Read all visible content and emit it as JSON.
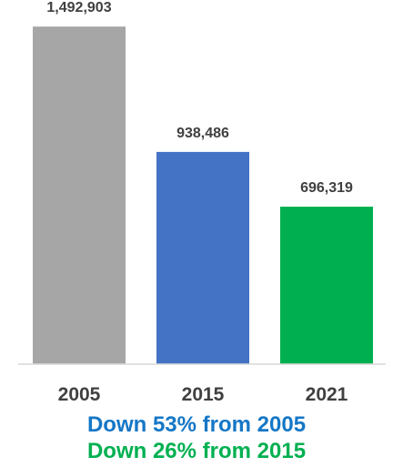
{
  "chart_data": {
    "type": "bar",
    "categories": [
      "2005",
      "2015",
      "2021"
    ],
    "values": [
      1492903,
      938486,
      696319
    ],
    "data_labels": [
      "1,492,903",
      "938,486",
      "696,319"
    ],
    "colors": [
      "#a6a6a6",
      "#4472c4",
      "#00b050"
    ],
    "ylim": [
      0,
      1550000
    ],
    "grid": false,
    "legend": "none",
    "title": "",
    "xlabel": "",
    "ylabel": "",
    "annotations": [
      {
        "text": "Down 53% from 2005",
        "color": "#1577c6"
      },
      {
        "text": "Down 26% from 2015",
        "color": "#00b050"
      }
    ]
  }
}
